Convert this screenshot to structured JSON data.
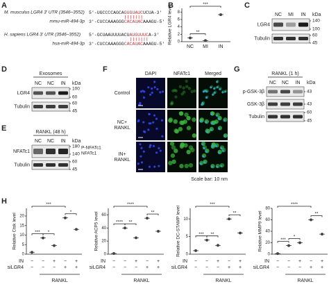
{
  "panels": {
    "A": {
      "label": "A",
      "mouse": {
        "title": "M. musculus LGR4 3' UTR (3546–3552)",
        "utr": [
          "5'-UGCCCCAGCA",
          "GUGUAUC",
          "UCUA-3'"
        ],
        "mirna_name": "mmu-miR-494-3p",
        "mirna": [
          "3'-CUCCAAAGGG",
          "CACAUAC",
          "AAAGU-5'"
        ]
      },
      "human": {
        "title": "H. sapiens LGR4 3' UTR (3546–3552)",
        "utr": [
          "5'-GCUAAUUUUACU",
          "AUGUUUC",
          "A-3'"
        ],
        "mirna_name": "hsa-miR-494-3p",
        "mirna": [
          "3'-CUCCAAAGGG",
          "CACAUAC",
          "AAAGU-5'"
        ]
      }
    },
    "B": {
      "label": "B",
      "type": "dot",
      "ylabel": "Relative LGR4 level",
      "categories": [
        "NC",
        "MI",
        "IN"
      ],
      "values": [
        1,
        0.3,
        7.3
      ],
      "ylim": [
        0,
        9
      ],
      "yticks": [
        0,
        2,
        4,
        6,
        8
      ],
      "significance": [
        "***",
        "**"
      ],
      "color": "#444444"
    },
    "C": {
      "label": "C",
      "lanes": [
        "NC",
        "MI",
        "IN"
      ],
      "bands": [
        "LGR4",
        "Tubulin"
      ],
      "kda_title": "kDa",
      "kda": [
        "140",
        "100",
        "60",
        "45"
      ]
    },
    "D": {
      "label": "D",
      "header": "Exosomes",
      "lanes": [
        "NC",
        "NC",
        "IN"
      ],
      "bands": [
        "LGR4",
        "Tubulin"
      ],
      "kda_title": "kDa",
      "kda": [
        "100",
        "60",
        "60",
        "45"
      ]
    },
    "E": {
      "label": "E",
      "header": "RANKL (48 h)",
      "lanes": [
        "NC",
        "NC",
        "IN"
      ],
      "bands": [
        "NFATc1",
        "Tubulin"
      ],
      "kda_title": "kDa",
      "kda": [
        "180",
        "140",
        "60",
        "45"
      ],
      "band_notes": [
        "P-NFATc1",
        "NFATc1"
      ]
    },
    "F": {
      "label": "F",
      "columns": [
        "DAPI",
        "NFATc1",
        "Merged"
      ],
      "rows": [
        [
          "Control"
        ],
        [
          "NC+",
          "RANKL"
        ],
        [
          "IN+",
          "RANKL"
        ]
      ],
      "scale_note": "Scale bar: 10 nm"
    },
    "G": {
      "label": "G",
      "header": "RANKL (1 h)",
      "lanes": [
        "NC",
        "NC",
        "IN"
      ],
      "bands": [
        "p-GSK-3β",
        "GSK-3β",
        "Tubulin"
      ],
      "kda_title": "kDa",
      "kda": [
        "43",
        "43",
        "60",
        "45"
      ]
    },
    "H": {
      "label": "H",
      "charts": [
        {
          "type": "dot",
          "ylabel": "Relative Ctsk level",
          "values": [
            1,
            8.5,
            4.5,
            19,
            13
          ],
          "ylim": [
            0,
            24
          ],
          "yticks": [
            0,
            5,
            10,
            15,
            20
          ],
          "significance": [
            "***",
            "***",
            "*",
            "*"
          ],
          "color": "#444444",
          "rows": [
            {
              "label": "IN",
              "signs": [
                "−",
                "−",
                "+",
                "−",
                "+"
              ]
            },
            {
              "label": "siLGR4",
              "signs": [
                "−",
                "−",
                "−",
                "+",
                "+"
              ]
            }
          ],
          "group_label": "RANKL"
        },
        {
          "type": "dot",
          "ylabel": "Relative ACP5 level",
          "values": [
            1,
            40,
            25,
            55,
            35
          ],
          "ylim": [
            0,
            70
          ],
          "yticks": [
            0,
            20,
            40,
            60
          ],
          "significance": [
            "****",
            "****",
            "**",
            "**"
          ],
          "color": "#444444",
          "rows": [
            {
              "label": "IN",
              "signs": [
                "−",
                "−",
                "+",
                "−",
                "+"
              ]
            },
            {
              "label": "siLGR4",
              "signs": [
                "−",
                "−",
                "−",
                "+",
                "+"
              ]
            }
          ],
          "group_label": "RANKL"
        },
        {
          "type": "dot",
          "ylabel": "Relative DC-STAMP level",
          "values": [
            1,
            4,
            2.5,
            10,
            6
          ],
          "ylim": [
            0,
            13
          ],
          "yticks": [
            0,
            5,
            10
          ],
          "significance": [
            "***",
            "***",
            "**",
            "**"
          ],
          "color": "#444444",
          "rows": [
            {
              "label": "IN",
              "signs": [
                "−",
                "−",
                "+",
                "−",
                "+"
              ]
            },
            {
              "label": "siLGR4",
              "signs": [
                "−",
                "−",
                "−",
                "+",
                "+"
              ]
            }
          ],
          "group_label": "RANKL"
        },
        {
          "type": "dot",
          "ylabel": "Relative MMP9 level",
          "values": [
            1,
            15,
            20,
            60,
            35
          ],
          "ylim": [
            0,
            80
          ],
          "yticks": [
            0,
            20,
            40,
            60,
            80
          ],
          "significance": [
            "****",
            "***",
            "*",
            "**"
          ],
          "color": "#444444",
          "rows": [
            {
              "label": "IN",
              "signs": [
                "−",
                "−",
                "+",
                "−",
                "+"
              ]
            },
            {
              "label": "siLGR4",
              "signs": [
                "−",
                "−",
                "−",
                "+",
                "+"
              ]
            }
          ],
          "group_label": "RANKL"
        }
      ]
    }
  }
}
